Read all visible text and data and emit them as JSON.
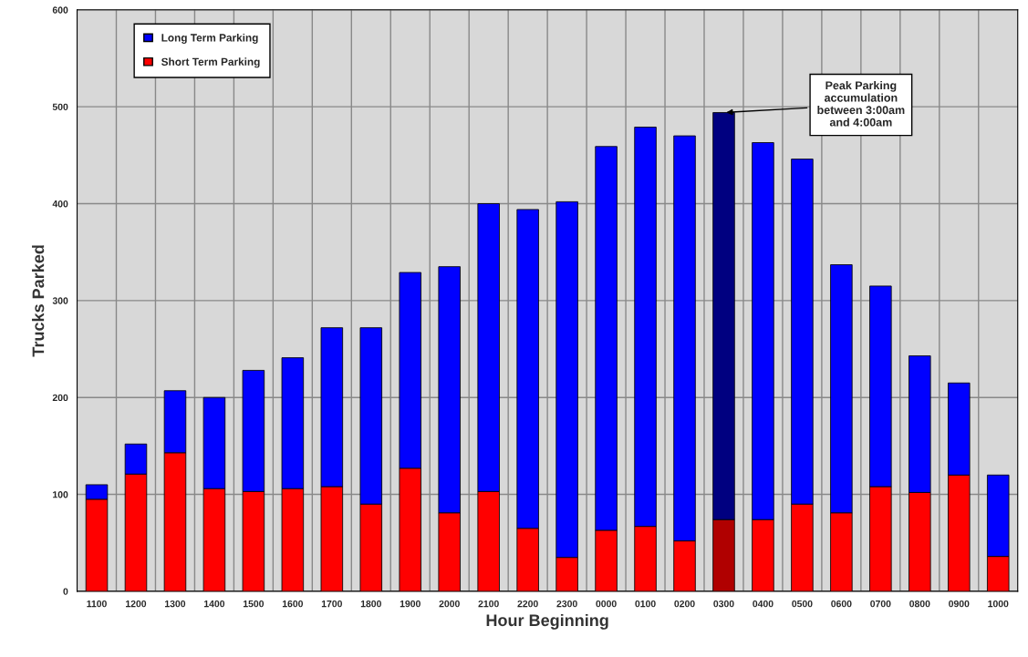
{
  "chart_data": {
    "type": "bar",
    "stacked": true,
    "xlabel": "Hour Beginning",
    "ylabel": "Trucks Parked",
    "categories": [
      "1100",
      "1200",
      "1300",
      "1400",
      "1500",
      "1600",
      "1700",
      "1800",
      "1900",
      "2000",
      "2100",
      "2200",
      "2300",
      "0000",
      "0100",
      "0200",
      "0300",
      "0400",
      "0500",
      "0600",
      "0700",
      "0800",
      "0900",
      "1000"
    ],
    "series": [
      {
        "name": "Short Term Parking",
        "color": "#ff0000",
        "colors": [
          "#ff0000",
          "#ff0000",
          "#ff0000",
          "#ff0000",
          "#ff0000",
          "#ff0000",
          "#ff0000",
          "#ff0000",
          "#ff0000",
          "#ff0000",
          "#ff0000",
          "#ff0000",
          "#ff0000",
          "#ff0000",
          "#ff0000",
          "#ff0000",
          "#b00000",
          "#ff0000",
          "#ff0000",
          "#ff0000",
          "#ff0000",
          "#ff0000",
          "#ff0000",
          "#ff0000"
        ],
        "values": [
          95,
          121,
          143,
          106,
          103,
          106,
          108,
          90,
          127,
          81,
          103,
          65,
          35,
          63,
          67,
          52,
          74,
          74,
          90,
          81,
          108,
          102,
          120,
          36
        ]
      },
      {
        "name": "Long Term Parking",
        "color": "#0000ff",
        "colors": [
          "#0000ff",
          "#0000ff",
          "#0000ff",
          "#0000ff",
          "#0000ff",
          "#0000ff",
          "#0000ff",
          "#0000ff",
          "#0000ff",
          "#0000ff",
          "#0000ff",
          "#0000ff",
          "#0000ff",
          "#0000ff",
          "#0000ff",
          "#0000ff",
          "#000080",
          "#0000ff",
          "#0000ff",
          "#0000ff",
          "#0000ff",
          "#0000ff",
          "#0000ff",
          "#0000ff"
        ],
        "values": [
          15,
          31,
          64,
          94,
          125,
          135,
          164,
          182,
          202,
          254,
          297,
          329,
          367,
          396,
          412,
          418,
          420,
          389,
          356,
          256,
          207,
          141,
          95,
          84
        ]
      }
    ],
    "ylim": [
      0,
      600
    ],
    "yticks": [
      0,
      100,
      200,
      300,
      400,
      500,
      600
    ],
    "grid": true,
    "legend": "top left",
    "annotations": [
      {
        "text": "Peak Parking\naccumulation\nbetween 3:00am\nand 4:00am",
        "x": "0300",
        "y": 494
      }
    ]
  }
}
